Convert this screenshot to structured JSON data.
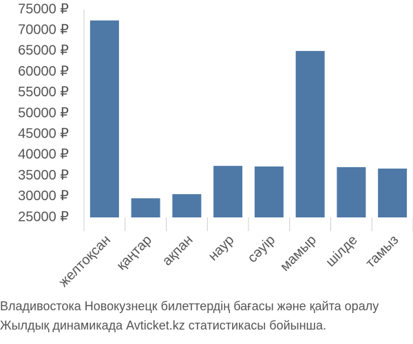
{
  "chart_data": {
    "type": "bar",
    "title": "Владивостока Новокузнецк билеттердің бағасы және қайта оралу",
    "subtitle": "Жылдық динамикада Avticket.kz статистикасы бойынша.",
    "categories": [
      "желтоқсан",
      "қаңтар",
      "ақпан",
      "наур",
      "сәуір",
      "мамыр",
      "шілде",
      "тамыз"
    ],
    "values": [
      72400,
      29600,
      30600,
      37400,
      37250,
      65050,
      37100,
      36750
    ],
    "color": "#4e79a7",
    "ylim": [
      25000,
      75000
    ],
    "yticks": [
      {
        "value": 25000,
        "label": "25000 ₽"
      },
      {
        "value": 30000,
        "label": "30000 ₽"
      },
      {
        "value": 35000,
        "label": "35000 ₽"
      },
      {
        "value": 40000,
        "label": "40000 ₽"
      },
      {
        "value": 45000,
        "label": "45000 ₽"
      },
      {
        "value": 50000,
        "label": "50000 ₽"
      },
      {
        "value": 55000,
        "label": "55000 ₽"
      },
      {
        "value": 60000,
        "label": "60000 ₽"
      },
      {
        "value": 65000,
        "label": "65000 ₽"
      },
      {
        "value": 70000,
        "label": "70000 ₽"
      },
      {
        "value": 75000,
        "label": "75000 ₽"
      }
    ],
    "grid": false
  }
}
